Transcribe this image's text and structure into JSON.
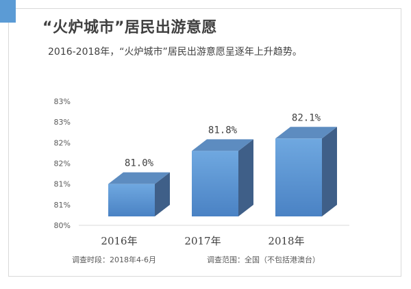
{
  "header": {
    "title": "“火炉城市”居民出游意愿",
    "subtitle": "2016-2018年，“火炉城市”居民出游意愿呈逐年上升趋势。"
  },
  "footer": {
    "survey_period": "调查时段：2018年4-6月",
    "survey_scope": "调查范围：全国（不包括港澳台）"
  },
  "colors": {
    "accent": "#5b9bd5",
    "bar_front_top": "#6fa8e0",
    "bar_front_bottom": "#4a82c4",
    "bar_top": "#5d8cc0",
    "bar_side": "#3f5f88"
  },
  "chart_data": {
    "type": "bar",
    "categories": [
      "2016年",
      "2017年",
      "2018年"
    ],
    "values": [
      81.0,
      81.8,
      82.1
    ],
    "data_labels": [
      "81.0%",
      "81.8%",
      "82.1%"
    ],
    "ylim": [
      80,
      83
    ],
    "y_ticks": [
      80,
      80.5,
      81,
      81.5,
      82,
      82.5,
      83
    ],
    "y_tick_labels": [
      "80%",
      "81%",
      "81%",
      "82%",
      "82%",
      "83%",
      "83%"
    ],
    "title": "",
    "xlabel": "",
    "ylabel": "",
    "grid": false,
    "style": "3d-column"
  }
}
